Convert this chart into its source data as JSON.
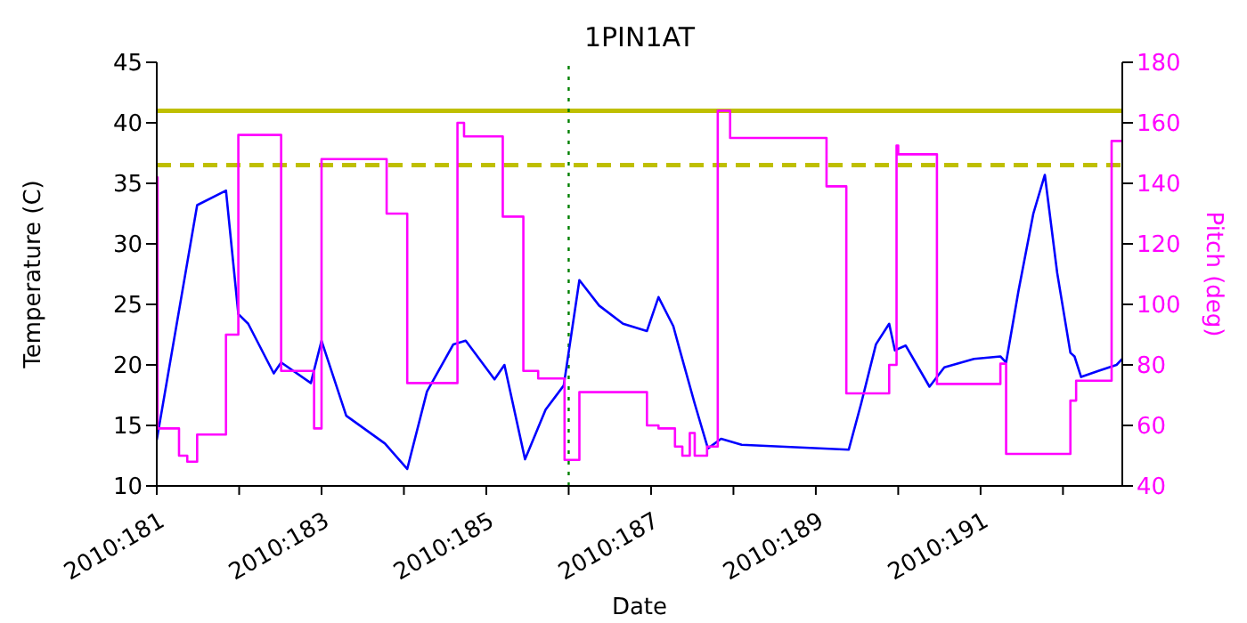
{
  "chart_data": {
    "type": "line",
    "title": "1PIN1AT",
    "xlabel": "Date",
    "ylabel": "Temperature (C)",
    "y2label": "Pitch (deg)",
    "xlim": [
      "2010-06-30T00:00",
      "2010-07-11T17:17"
    ],
    "xticks": [
      {
        "value": "2010-06-30",
        "label": "2010:181"
      },
      {
        "value": "2010-07-01",
        "label": null
      },
      {
        "value": "2010-07-02",
        "label": "2010:183"
      },
      {
        "value": "2010-07-03",
        "label": null
      },
      {
        "value": "2010-07-04",
        "label": "2010:185"
      },
      {
        "value": "2010-07-05",
        "label": null
      },
      {
        "value": "2010-07-06",
        "label": "2010:187"
      },
      {
        "value": "2010-07-07",
        "label": null
      },
      {
        "value": "2010-07-08",
        "label": "2010:189"
      },
      {
        "value": "2010-07-09",
        "label": null
      },
      {
        "value": "2010-07-10",
        "label": "2010:191"
      },
      {
        "value": "2010-07-11",
        "label": null
      }
    ],
    "ylim": [
      10,
      45
    ],
    "yticks": [
      10,
      15,
      20,
      25,
      30,
      35,
      40,
      45
    ],
    "y2lim": [
      40,
      180
    ],
    "y2ticks": [
      40,
      60,
      80,
      100,
      120,
      140,
      160,
      180
    ],
    "grid": false,
    "legend": false,
    "marker": "none",
    "series": [
      {
        "color": "#0000ff",
        "x": [
          "2010-06-30T00:00",
          "2010-06-30T11:46",
          "2010-06-30T20:10",
          "2010-06-30T23:46",
          "2010-07-01T02:38",
          "2010-07-01T10:05",
          "2010-07-01T12:14",
          "2010-07-01T20:53",
          "2010-07-02T00:00",
          "2010-07-02T07:12",
          "2010-07-02T18:29",
          "2010-07-03T00:58",
          "2010-07-03T06:43",
          "2010-07-03T14:24",
          "2010-07-03T18:00",
          "2010-07-04T02:24",
          "2010-07-04T05:17",
          "2010-07-04T11:17",
          "2010-07-04T17:17",
          "2010-07-04T22:34",
          "2010-07-05T03:07",
          "2010-07-05T08:53",
          "2010-07-05T15:50",
          "2010-07-05T22:48",
          "2010-07-06T02:10",
          "2010-07-06T06:29",
          "2010-07-06T08:24",
          "2010-07-06T12:43",
          "2010-07-06T16:34",
          "2010-07-06T20:24",
          "2010-07-07T02:24",
          "2010-07-08T09:36",
          "2010-07-08T13:12",
          "2010-07-08T17:31",
          "2010-07-08T21:22",
          "2010-07-08T23:02",
          "2010-07-09T02:10",
          "2010-07-09T09:07",
          "2010-07-09T13:26",
          "2010-07-09T22:05",
          "2010-07-10T05:46",
          "2010-07-10T07:26",
          "2010-07-10T11:02",
          "2010-07-10T15:22",
          "2010-07-10T18:43",
          "2010-07-10T22:19",
          "2010-07-11T02:10",
          "2010-07-11T03:22",
          "2010-07-11T05:17",
          "2010-07-11T10:19",
          "2010-07-11T15:36",
          "2010-07-11T17:17"
        ],
        "values": [
          13.8,
          33.2,
          34.4,
          24.2,
          23.4,
          19.3,
          20.2,
          18.5,
          22.0,
          15.8,
          13.5,
          11.4,
          17.8,
          21.7,
          22.0,
          18.8,
          20.0,
          12.2,
          16.3,
          18.3,
          27.0,
          24.9,
          23.4,
          22.8,
          25.6,
          23.2,
          21.2,
          16.8,
          13.1,
          13.9,
          13.4,
          13.0,
          16.8,
          21.7,
          23.4,
          21.2,
          21.6,
          18.2,
          19.8,
          20.5,
          20.7,
          20.2,
          26.1,
          32.5,
          35.7,
          27.6,
          21.0,
          20.7,
          19.0,
          19.5,
          20.0,
          20.5
        ]
      },
      {
        "type": "step",
        "axis": "y2",
        "color": "#ff00ff",
        "x": [
          "2010-06-30T00:00",
          "2010-06-30T00:14",
          "2010-06-30T06:29",
          "2010-06-30T08:53",
          "2010-06-30T11:46",
          "2010-06-30T20:10",
          "2010-06-30T23:46",
          "2010-07-01T12:14",
          "2010-07-01T21:50",
          "2010-07-02T00:00",
          "2010-07-02T18:58",
          "2010-07-03T00:58",
          "2010-07-03T15:36",
          "2010-07-03T17:31",
          "2010-07-04T04:48",
          "2010-07-04T10:48",
          "2010-07-04T15:07",
          "2010-07-04T22:48",
          "2010-07-05T03:07",
          "2010-07-05T22:48",
          "2010-07-06T02:10",
          "2010-07-06T06:58",
          "2010-07-06T09:07",
          "2010-07-06T11:17",
          "2010-07-06T12:43",
          "2010-07-06T16:19",
          "2010-07-06T19:26",
          "2010-07-06T23:02",
          "2010-07-08T03:07",
          "2010-07-08T08:53",
          "2010-07-08T21:22",
          "2010-07-08T23:31",
          "2010-07-09T00:00",
          "2010-07-09T11:17",
          "2010-07-10T05:46",
          "2010-07-10T07:26",
          "2010-07-11T02:10",
          "2010-07-11T03:50",
          "2010-07-11T14:10",
          "2010-07-11T17:17"
        ],
        "values": [
          142,
          59,
          50,
          48,
          57,
          90,
          156,
          78,
          59,
          148,
          130,
          74,
          160,
          155.5,
          129,
          78,
          75.5,
          48.6,
          71,
          60,
          59,
          53,
          50,
          57.5,
          50,
          53,
          164,
          155,
          139,
          70.6,
          80,
          152.5,
          149.6,
          73.7,
          80.4,
          50.6,
          68.2,
          74.8,
          154,
          154
        ]
      }
    ],
    "ref_lines": [
      {
        "axis": "y",
        "value": 41,
        "color": "#bfbf00",
        "line_style": "solid"
      },
      {
        "axis": "y",
        "value": 36.5,
        "color": "#bfbf00",
        "line_style": "dashed"
      },
      {
        "axis": "x",
        "value": "2010-07-05T00:00",
        "color": "#008000",
        "line_style": "dotted"
      }
    ]
  }
}
